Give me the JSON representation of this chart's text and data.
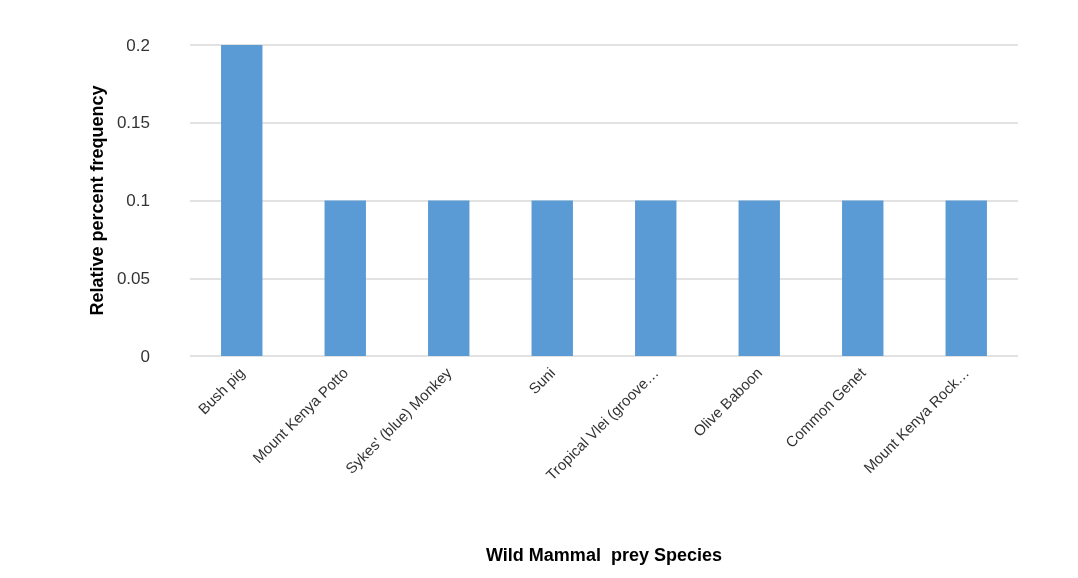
{
  "chart_data": {
    "type": "bar",
    "categories": [
      "Bush pig",
      "Mount Kenya Potto",
      "Sykes' (blue) Monkey",
      "Suni",
      "Tropical Vlei (groove…",
      "Olive Baboon",
      "Common Genet",
      "Mount Kenya Rock…"
    ],
    "values": [
      0.2,
      0.1,
      0.1,
      0.1,
      0.1,
      0.1,
      0.1,
      0.1
    ],
    "color": "#5b9bd5",
    "xlabel": "Wild Mammal  prey Species",
    "ylabel": "Relative percent frequency",
    "ylim": [
      0,
      0.2
    ],
    "yticks": [
      0,
      0.05,
      0.1,
      0.15,
      0.2
    ],
    "grid": "y"
  }
}
